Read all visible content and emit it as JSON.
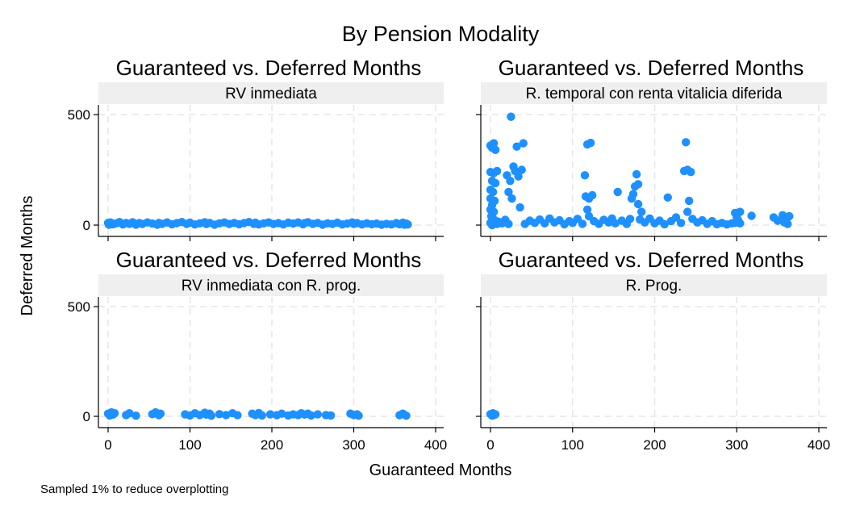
{
  "figure": {
    "title": "By Pension Modality",
    "xlabel": "Guaranteed Months",
    "ylabel": "Deferred Months",
    "note": "Sampled 1% to reduce overplotting",
    "marker_color": "#1e90ff",
    "strip_color": "#efefef"
  },
  "chart_data": [
    {
      "type": "scatter",
      "title": "Guaranteed vs. Deferred Months",
      "subtitle": "RV inmediata",
      "xlim": [
        0,
        400
      ],
      "ylim": [
        0,
        500
      ],
      "xticks": [
        0,
        100,
        200,
        300,
        400
      ],
      "yticks": [
        0,
        500
      ],
      "show_x_ticklabels": false,
      "show_y_ticklabels": true,
      "grid": true,
      "points": [
        [
          0,
          10
        ],
        [
          1,
          2
        ],
        [
          3,
          12
        ],
        [
          6,
          4
        ],
        [
          10,
          8
        ],
        [
          14,
          14
        ],
        [
          18,
          3
        ],
        [
          22,
          10
        ],
        [
          26,
          6
        ],
        [
          30,
          13
        ],
        [
          34,
          2
        ],
        [
          38,
          9
        ],
        [
          42,
          5
        ],
        [
          48,
          12
        ],
        [
          54,
          7
        ],
        [
          60,
          2
        ],
        [
          62,
          10
        ],
        [
          66,
          6
        ],
        [
          72,
          12
        ],
        [
          78,
          4
        ],
        [
          84,
          9
        ],
        [
          90,
          14
        ],
        [
          96,
          6
        ],
        [
          100,
          11
        ],
        [
          106,
          3
        ],
        [
          112,
          8
        ],
        [
          118,
          13
        ],
        [
          120,
          5
        ],
        [
          124,
          10
        ],
        [
          130,
          2
        ],
        [
          136,
          8
        ],
        [
          142,
          12
        ],
        [
          148,
          5
        ],
        [
          154,
          10
        ],
        [
          160,
          4
        ],
        [
          166,
          9
        ],
        [
          172,
          14
        ],
        [
          178,
          6
        ],
        [
          180,
          11
        ],
        [
          184,
          3
        ],
        [
          190,
          8
        ],
        [
          196,
          12
        ],
        [
          202,
          5
        ],
        [
          208,
          9
        ],
        [
          214,
          3
        ],
        [
          220,
          11
        ],
        [
          226,
          7
        ],
        [
          232,
          12
        ],
        [
          238,
          4
        ],
        [
          240,
          9
        ],
        [
          244,
          13
        ],
        [
          250,
          6
        ],
        [
          256,
          10
        ],
        [
          262,
          2
        ],
        [
          268,
          8
        ],
        [
          274,
          5
        ],
        [
          280,
          11
        ],
        [
          286,
          3
        ],
        [
          292,
          7
        ],
        [
          298,
          12
        ],
        [
          300,
          5
        ],
        [
          304,
          9
        ],
        [
          310,
          3
        ],
        [
          316,
          8
        ],
        [
          322,
          4
        ],
        [
          328,
          7
        ],
        [
          334,
          2
        ],
        [
          340,
          6
        ],
        [
          346,
          3
        ],
        [
          352,
          9
        ],
        [
          356,
          4
        ],
        [
          360,
          11
        ],
        [
          362,
          2
        ],
        [
          364,
          7
        ],
        [
          366,
          3
        ]
      ]
    },
    {
      "type": "scatter",
      "title": "Guaranteed vs. Deferred Months",
      "subtitle": "R. temporal con renta vitalicia diferida",
      "xlim": [
        0,
        400
      ],
      "ylim": [
        0,
        500
      ],
      "xticks": [
        0,
        100,
        200,
        300,
        400
      ],
      "yticks": [
        0,
        500
      ],
      "show_x_ticklabels": false,
      "show_y_ticklabels": false,
      "grid": true,
      "points": [
        [
          0,
          360
        ],
        [
          2,
          350
        ],
        [
          4,
          370
        ],
        [
          6,
          340
        ],
        [
          0,
          240
        ],
        [
          4,
          235
        ],
        [
          8,
          245
        ],
        [
          2,
          200
        ],
        [
          6,
          190
        ],
        [
          0,
          160
        ],
        [
          3,
          150
        ],
        [
          0,
          120
        ],
        [
          5,
          110
        ],
        [
          2,
          90
        ],
        [
          0,
          70
        ],
        [
          4,
          60
        ],
        [
          1,
          40
        ],
        [
          3,
          30
        ],
        [
          6,
          20
        ],
        [
          0,
          10
        ],
        [
          8,
          5
        ],
        [
          2,
          0
        ],
        [
          10,
          15
        ],
        [
          14,
          8
        ],
        [
          18,
          24
        ],
        [
          22,
          5
        ],
        [
          25,
          490
        ],
        [
          28,
          265
        ],
        [
          30,
          245
        ],
        [
          34,
          220
        ],
        [
          32,
          355
        ],
        [
          38,
          250
        ],
        [
          40,
          370
        ],
        [
          20,
          225
        ],
        [
          24,
          200
        ],
        [
          22,
          150
        ],
        [
          26,
          120
        ],
        [
          36,
          80
        ],
        [
          42,
          5
        ],
        [
          48,
          20
        ],
        [
          54,
          10
        ],
        [
          60,
          25
        ],
        [
          66,
          8
        ],
        [
          72,
          30
        ],
        [
          78,
          12
        ],
        [
          84,
          22
        ],
        [
          90,
          4
        ],
        [
          96,
          18
        ],
        [
          100,
          10
        ],
        [
          106,
          28
        ],
        [
          112,
          6
        ],
        [
          115,
          225
        ],
        [
          118,
          365
        ],
        [
          122,
          372
        ],
        [
          116,
          130
        ],
        [
          120,
          120
        ],
        [
          124,
          135
        ],
        [
          118,
          70
        ],
        [
          120,
          40
        ],
        [
          126,
          18
        ],
        [
          132,
          6
        ],
        [
          138,
          24
        ],
        [
          144,
          12
        ],
        [
          148,
          30
        ],
        [
          152,
          8
        ],
        [
          155,
          150
        ],
        [
          160,
          20
        ],
        [
          166,
          5
        ],
        [
          170,
          28
        ],
        [
          172,
          120
        ],
        [
          176,
          175
        ],
        [
          180,
          185
        ],
        [
          178,
          230
        ],
        [
          174,
          140
        ],
        [
          180,
          95
        ],
        [
          184,
          60
        ],
        [
          182,
          25
        ],
        [
          188,
          12
        ],
        [
          194,
          30
        ],
        [
          200,
          8
        ],
        [
          206,
          20
        ],
        [
          212,
          4
        ],
        [
          216,
          125
        ],
        [
          220,
          18
        ],
        [
          226,
          35
        ],
        [
          232,
          10
        ],
        [
          236,
          245
        ],
        [
          240,
          250
        ],
        [
          244,
          240
        ],
        [
          238,
          375
        ],
        [
          242,
          110
        ],
        [
          240,
          60
        ],
        [
          246,
          28
        ],
        [
          252,
          12
        ],
        [
          258,
          22
        ],
        [
          264,
          6
        ],
        [
          270,
          18
        ],
        [
          276,
          4
        ],
        [
          282,
          10
        ],
        [
          288,
          3
        ],
        [
          294,
          8
        ],
        [
          298,
          55
        ],
        [
          300,
          35
        ],
        [
          302,
          20
        ],
        [
          304,
          60
        ],
        [
          298,
          10
        ],
        [
          304,
          8
        ],
        [
          318,
          42
        ],
        [
          345,
          35
        ],
        [
          350,
          20
        ],
        [
          356,
          45
        ],
        [
          360,
          25
        ],
        [
          364,
          40
        ],
        [
          358,
          12
        ],
        [
          362,
          5
        ]
      ]
    },
    {
      "type": "scatter",
      "title": "Guaranteed vs. Deferred Months",
      "subtitle": "RV inmediata con R. prog.",
      "xlim": [
        0,
        400
      ],
      "ylim": [
        0,
        500
      ],
      "xticks": [
        0,
        100,
        200,
        300,
        400
      ],
      "yticks": [
        0,
        500
      ],
      "show_x_ticklabels": true,
      "show_y_ticklabels": true,
      "grid": true,
      "points": [
        [
          0,
          12
        ],
        [
          2,
          4
        ],
        [
          4,
          18
        ],
        [
          6,
          8
        ],
        [
          8,
          14
        ],
        [
          22,
          6
        ],
        [
          26,
          14
        ],
        [
          34,
          3
        ],
        [
          54,
          10
        ],
        [
          58,
          18
        ],
        [
          62,
          5
        ],
        [
          64,
          12
        ],
        [
          94,
          9
        ],
        [
          100,
          4
        ],
        [
          106,
          14
        ],
        [
          112,
          6
        ],
        [
          118,
          16
        ],
        [
          120,
          8
        ],
        [
          124,
          12
        ],
        [
          126,
          3
        ],
        [
          136,
          10
        ],
        [
          144,
          6
        ],
        [
          152,
          14
        ],
        [
          158,
          5
        ],
        [
          176,
          12
        ],
        [
          180,
          6
        ],
        [
          184,
          15
        ],
        [
          188,
          4
        ],
        [
          198,
          9
        ],
        [
          206,
          5
        ],
        [
          212,
          12
        ],
        [
          220,
          4
        ],
        [
          226,
          9
        ],
        [
          232,
          6
        ],
        [
          236,
          14
        ],
        [
          240,
          8
        ],
        [
          244,
          12
        ],
        [
          248,
          4
        ],
        [
          256,
          9
        ],
        [
          266,
          6
        ],
        [
          272,
          4
        ],
        [
          296,
          12
        ],
        [
          300,
          6
        ],
        [
          304,
          9
        ],
        [
          306,
          3
        ],
        [
          356,
          5
        ],
        [
          360,
          12
        ],
        [
          364,
          3
        ]
      ]
    },
    {
      "type": "scatter",
      "title": "Guaranteed vs. Deferred Months",
      "subtitle": "R. Prog.",
      "xlim": [
        0,
        400
      ],
      "ylim": [
        0,
        500
      ],
      "xticks": [
        0,
        100,
        200,
        300,
        400
      ],
      "yticks": [
        0,
        500
      ],
      "show_x_ticklabels": true,
      "show_y_ticklabels": false,
      "grid": true,
      "points": [
        [
          0,
          10
        ],
        [
          2,
          3
        ],
        [
          3,
          14
        ],
        [
          4,
          6
        ],
        [
          6,
          9
        ]
      ]
    }
  ]
}
